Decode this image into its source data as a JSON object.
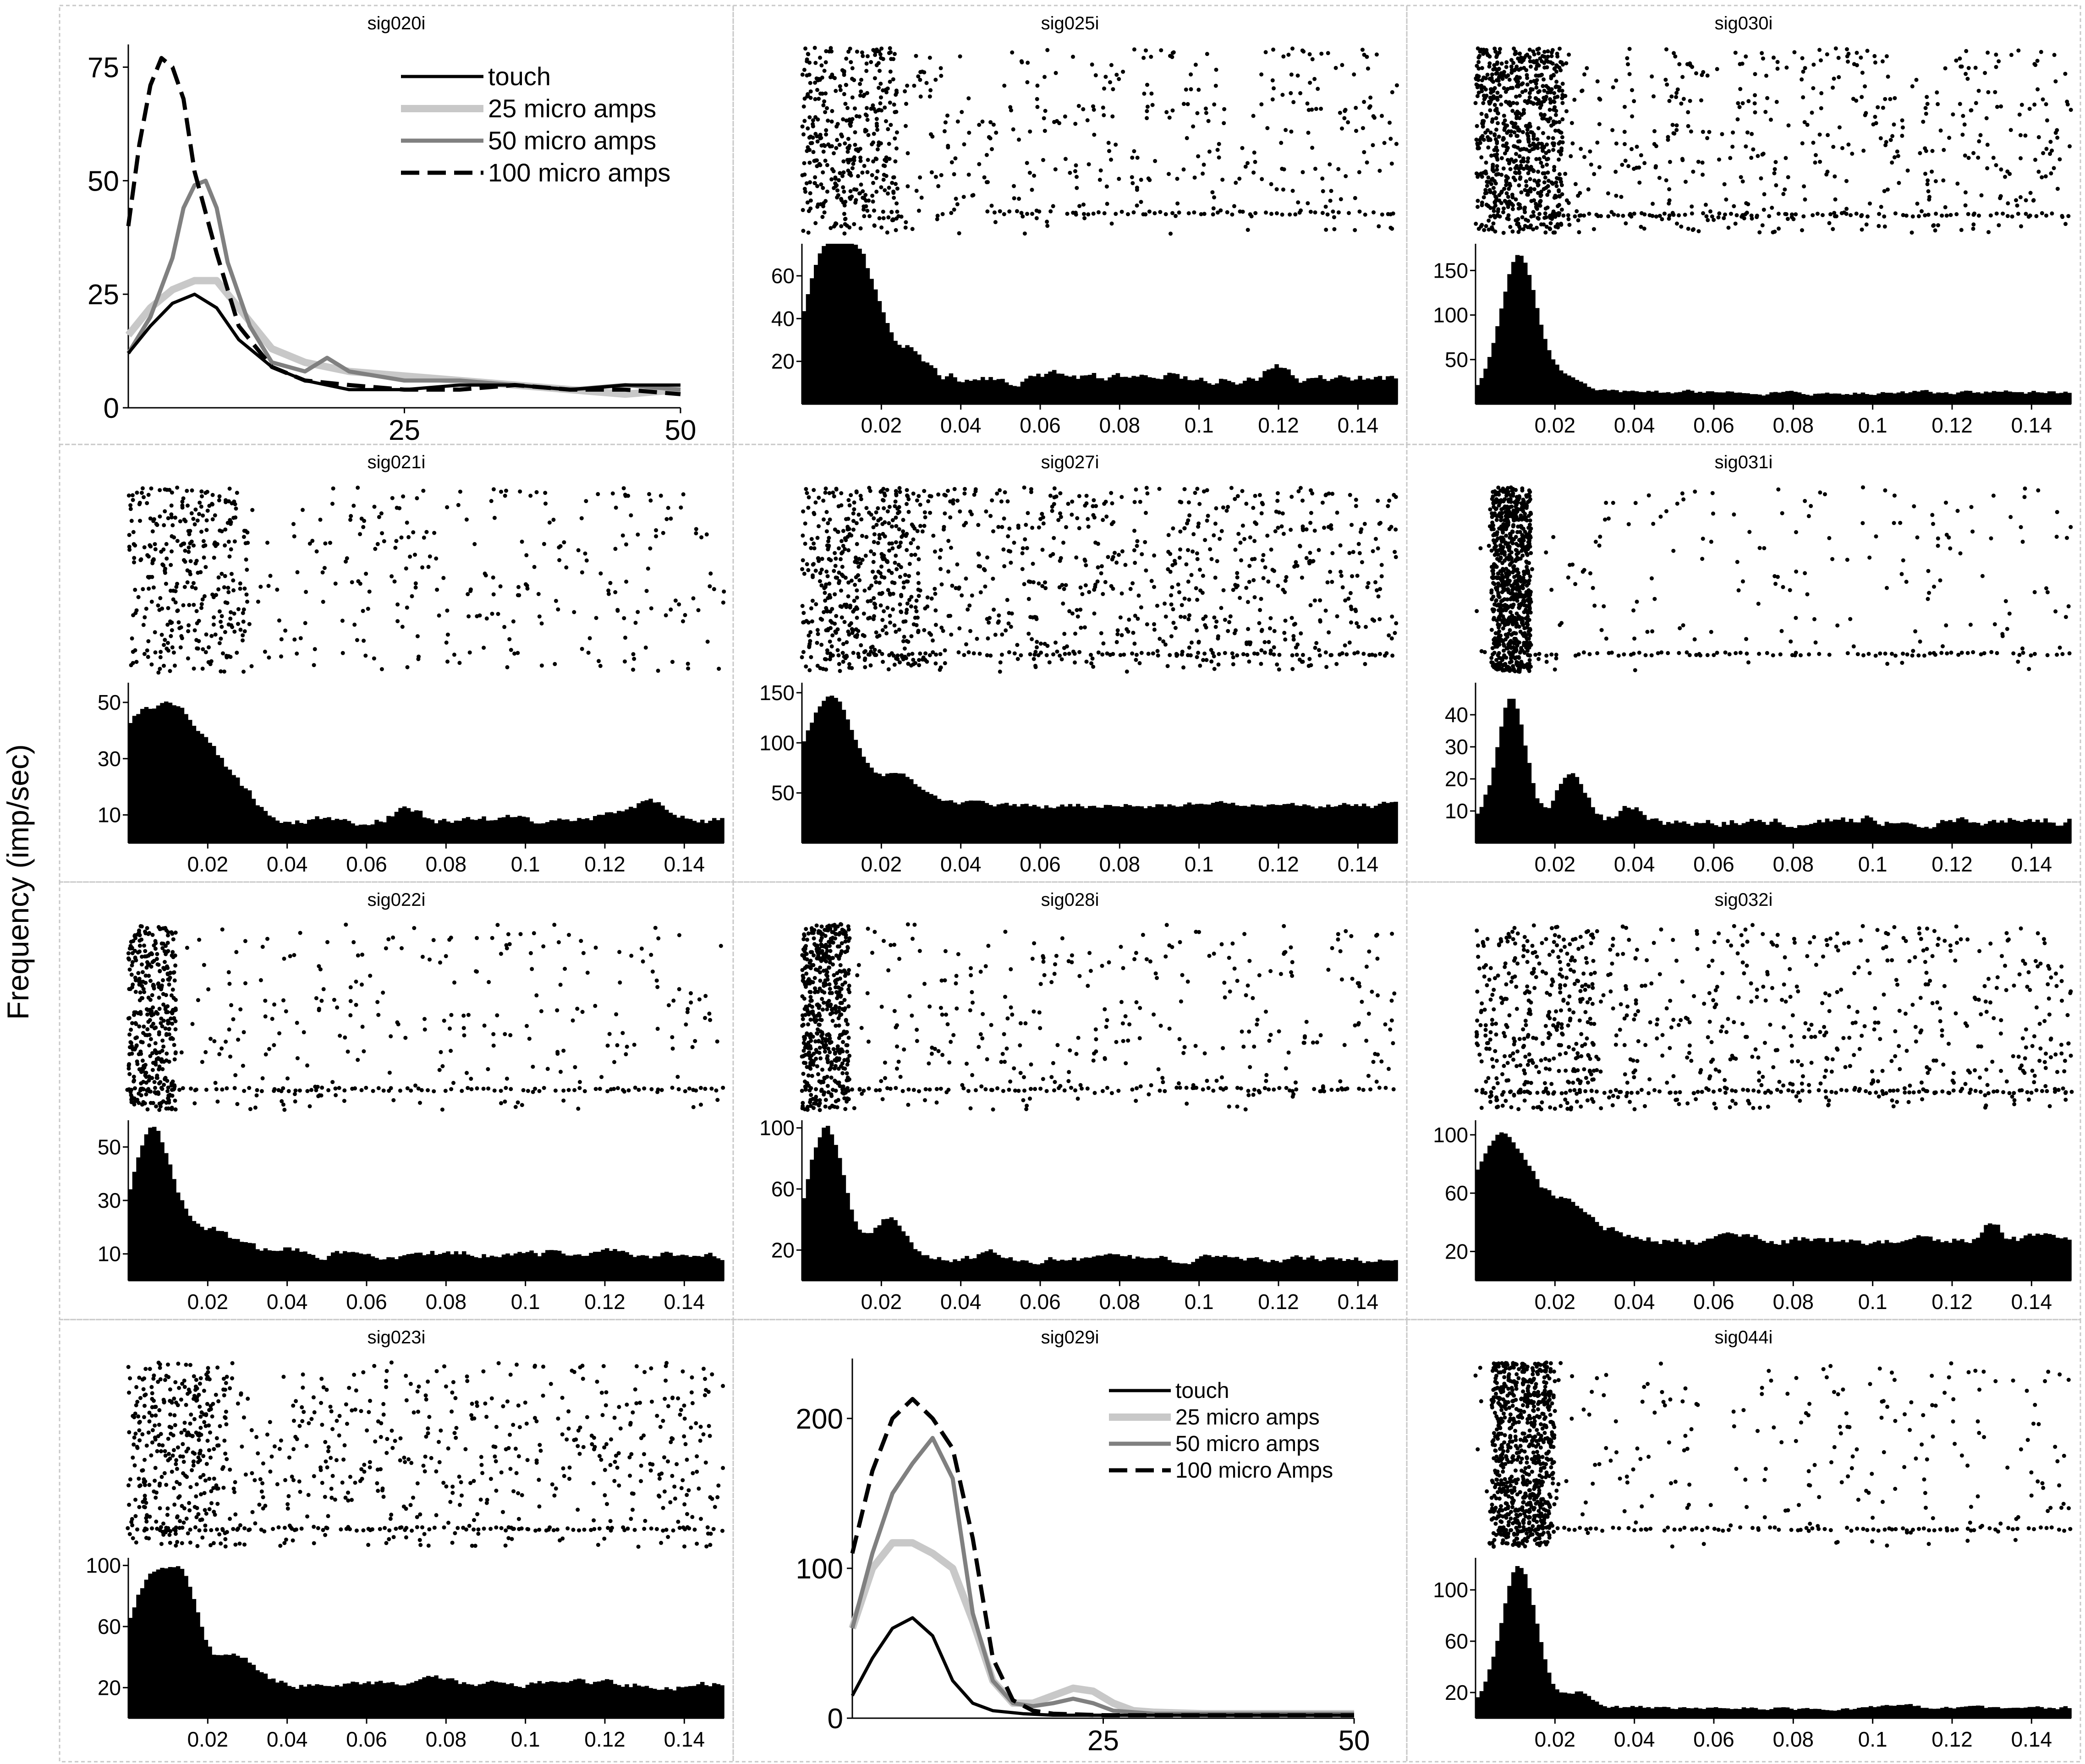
{
  "figure": {
    "ylabel": "Frequency (imp/sec)",
    "colors": {
      "touch": "#000000",
      "ua25": "#c8c8c8",
      "ua50": "#808080",
      "ua100": "#000000",
      "bars": "#000000"
    }
  },
  "chart_data": [
    {
      "id": "sig020i",
      "type": "line",
      "title": "sig020i",
      "xlim": [
        0,
        50
      ],
      "ylim": [
        0,
        80
      ],
      "xticks": [
        "25",
        "50"
      ],
      "yticks": [
        "0",
        "25",
        "50",
        "75"
      ],
      "xtick_values": [
        25,
        50
      ],
      "ytick_values": [
        0,
        25,
        50,
        75
      ],
      "legend_position": "top-right",
      "series": [
        {
          "name": "touch",
          "style": "solid-black",
          "x": [
            0,
            2,
            4,
            6,
            8,
            10,
            13,
            16,
            20,
            25,
            30,
            35,
            40,
            45,
            50
          ],
          "y": [
            12,
            18,
            23,
            25,
            22,
            15,
            9,
            6,
            4,
            4,
            5,
            5,
            4,
            5,
            5
          ]
        },
        {
          "name": "25 micro amps",
          "style": "solid-lightgray",
          "x": [
            0,
            2,
            4,
            6,
            8,
            10,
            13,
            16,
            20,
            25,
            30,
            35,
            40,
            45,
            50
          ],
          "y": [
            16,
            22,
            26,
            28,
            28,
            22,
            13,
            10,
            8,
            7,
            6,
            5,
            4,
            3,
            4
          ]
        },
        {
          "name": "50 micro amps",
          "style": "solid-gray",
          "x": [
            0,
            2,
            4,
            5,
            6,
            7,
            8,
            9,
            11,
            13,
            16,
            18,
            20,
            25,
            30,
            35,
            40,
            45,
            50
          ],
          "y": [
            12,
            20,
            33,
            44,
            49,
            50,
            44,
            32,
            18,
            10,
            8,
            11,
            8,
            6,
            6,
            5,
            4,
            5,
            4
          ]
        },
        {
          "name": "100 micro amps",
          "style": "dashed-black",
          "x": [
            0,
            1,
            2,
            3,
            4,
            5,
            6,
            7,
            8,
            10,
            13,
            16,
            20,
            25,
            30,
            35,
            40,
            45,
            50
          ],
          "y": [
            40,
            58,
            71,
            77,
            75,
            68,
            52,
            43,
            34,
            18,
            9,
            6,
            5,
            4,
            4,
            5,
            4,
            4,
            3
          ]
        }
      ]
    },
    {
      "id": "sig025i",
      "type": "raster+histogram",
      "title": "sig025i",
      "xlim": [
        0,
        0.15
      ],
      "ylim": [
        0,
        75
      ],
      "xticks": [
        "0.02",
        "0.04",
        "0.06",
        "0.08",
        "0.1",
        "0.12",
        "0.14"
      ],
      "yticks": [
        "20",
        "40",
        "60"
      ],
      "xtick_values": [
        0.02,
        0.04,
        0.06,
        0.08,
        0.1,
        0.12,
        0.14
      ],
      "ytick_values": [
        20,
        40,
        60
      ],
      "raster": {
        "rows": 14,
        "density": 0.5,
        "early": [
          0,
          0.024,
          3
        ],
        "band": [
          0.047,
          0.15,
          1
        ]
      },
      "hist": {
        "base": 12,
        "peaks": [
          [
            0.006,
            55,
            0.005
          ],
          [
            0.015,
            48,
            0.005
          ],
          [
            0.027,
            12,
            0.004
          ],
          [
            0.12,
            6,
            0.003
          ]
        ],
        "noise": 3
      }
    },
    {
      "id": "sig030i",
      "type": "raster+histogram",
      "title": "sig030i",
      "xlim": [
        0,
        0.15
      ],
      "ylim": [
        0,
        180
      ],
      "xticks": [
        "0.02",
        "0.04",
        "0.06",
        "0.08",
        "0.1",
        "0.12",
        "0.14"
      ],
      "yticks": [
        "50",
        "100",
        "150"
      ],
      "xtick_values": [
        0.02,
        0.04,
        0.06,
        0.08,
        0.1,
        0.12,
        0.14
      ],
      "ytick_values": [
        50,
        100,
        150
      ],
      "raster": {
        "rows": 16,
        "density": 0.55,
        "early": [
          0,
          0.022,
          5
        ],
        "band": [
          0.015,
          0.15,
          1
        ]
      },
      "hist": {
        "base": 13,
        "peaks": [
          [
            0.011,
            155,
            0.0045
          ],
          [
            0.022,
            15,
            0.004
          ]
        ],
        "noise": 3
      }
    },
    {
      "id": "sig021i",
      "type": "raster+histogram",
      "title": "sig021i",
      "xlim": [
        0,
        0.15
      ],
      "ylim": [
        0,
        57
      ],
      "xticks": [
        "0.02",
        "0.04",
        "0.06",
        "0.08",
        "0.1",
        "0.12",
        "0.14"
      ],
      "yticks": [
        "10",
        "30",
        "50"
      ],
      "xtick_values": [
        0.02,
        0.04,
        0.06,
        0.08,
        0.1,
        0.12,
        0.14
      ],
      "ytick_values": [
        10,
        30,
        50
      ],
      "raster": {
        "rows": 14,
        "density": 0.4,
        "early": [
          0,
          0.03,
          2.5
        ],
        "band": null
      },
      "hist": {
        "base": 8,
        "peaks": [
          [
            0.006,
            38,
            0.012
          ],
          [
            0.02,
            10,
            0.008
          ],
          [
            0.07,
            5,
            0.003
          ],
          [
            0.13,
            6,
            0.006
          ]
        ],
        "noise": 2
      }
    },
    {
      "id": "sig027i",
      "type": "raster+histogram",
      "title": "sig027i",
      "xlim": [
        0,
        0.15
      ],
      "ylim": [
        0,
        160
      ],
      "xticks": [
        "0.02",
        "0.04",
        "0.06",
        "0.08",
        "0.1",
        "0.12",
        "0.14"
      ],
      "yticks": [
        "50",
        "100",
        "150"
      ],
      "xtick_values": [
        0.02,
        0.04,
        0.06,
        0.08,
        0.1,
        0.12,
        0.14
      ],
      "ytick_values": [
        50,
        100,
        150
      ],
      "raster": {
        "rows": 16,
        "density": 0.9,
        "early": [
          0,
          0.03,
          2.5
        ],
        "band": [
          0.01,
          0.15,
          1
        ]
      },
      "hist": {
        "base": 38,
        "peaks": [
          [
            0.007,
            110,
            0.006
          ],
          [
            0.024,
            28,
            0.005
          ]
        ],
        "noise": 4
      }
    },
    {
      "id": "sig031i",
      "type": "raster+histogram",
      "title": "sig031i",
      "xlim": [
        0,
        0.15
      ],
      "ylim": [
        0,
        50
      ],
      "xticks": [
        "0.02",
        "0.04",
        "0.06",
        "0.08",
        "0.1",
        "0.12",
        "0.14"
      ],
      "yticks": [
        "10",
        "20",
        "30",
        "40"
      ],
      "xtick_values": [
        0.02,
        0.04,
        0.06,
        0.08,
        0.1,
        0.12,
        0.14
      ],
      "ytick_values": [
        10,
        20,
        30,
        40
      ],
      "raster": {
        "rows": 16,
        "density": 0.18,
        "early": [
          0.004,
          0.014,
          6
        ],
        "band": [
          0.015,
          0.15,
          1
        ]
      },
      "hist": {
        "base": 7,
        "peaks": [
          [
            0.009,
            38,
            0.0035
          ],
          [
            0.024,
            13,
            0.004
          ],
          [
            0.04,
            4,
            0.003
          ]
        ],
        "noise": 2
      }
    },
    {
      "id": "sig022i",
      "type": "raster+histogram",
      "title": "sig022i",
      "xlim": [
        0,
        0.15
      ],
      "ylim": [
        0,
        60
      ],
      "xticks": [
        "0.02",
        "0.04",
        "0.06",
        "0.08",
        "0.1",
        "0.12",
        "0.14"
      ],
      "yticks": [
        "10",
        "30",
        "50"
      ],
      "xtick_values": [
        0.02,
        0.04,
        0.06,
        0.08,
        0.1,
        0.12,
        0.14
      ],
      "ytick_values": [
        10,
        30,
        50
      ],
      "raster": {
        "rows": 14,
        "density": 0.35,
        "early": [
          0,
          0.012,
          3
        ],
        "band": [
          0,
          0.15,
          1
        ]
      },
      "hist": {
        "base": 10,
        "peaks": [
          [
            0.006,
            45,
            0.005
          ],
          [
            0.02,
            10,
            0.006
          ],
          [
            0.04,
            3,
            0.003
          ]
        ],
        "noise": 2
      }
    },
    {
      "id": "sig028i",
      "type": "raster+histogram",
      "title": "sig028i",
      "xlim": [
        0,
        0.15
      ],
      "ylim": [
        0,
        105
      ],
      "xticks": [
        "0.02",
        "0.04",
        "0.06",
        "0.08",
        "0.1",
        "0.12",
        "0.14"
      ],
      "yticks": [
        "20",
        "60",
        "100"
      ],
      "xtick_values": [
        0.02,
        0.04,
        0.06,
        0.08,
        0.1,
        0.12,
        0.14
      ],
      "ytick_values": [
        20,
        60,
        100
      ],
      "raster": {
        "rows": 14,
        "density": 0.45,
        "early": [
          0,
          0.012,
          4
        ],
        "band": [
          0.01,
          0.15,
          1
        ]
      },
      "hist": {
        "base": 14,
        "peaks": [
          [
            0.006,
            86,
            0.0045
          ],
          [
            0.022,
            28,
            0.004
          ],
          [
            0.047,
            6,
            0.002
          ]
        ],
        "noise": 3
      }
    },
    {
      "id": "sig032i",
      "type": "raster+histogram",
      "title": "sig032i",
      "xlim": [
        0,
        0.15
      ],
      "ylim": [
        0,
        110
      ],
      "xticks": [
        "0.02",
        "0.04",
        "0.06",
        "0.08",
        "0.1",
        "0.12",
        "0.14"
      ],
      "yticks": [
        "20",
        "60",
        "100"
      ],
      "xtick_values": [
        0.02,
        0.04,
        0.06,
        0.08,
        0.1,
        0.12,
        0.14
      ],
      "ytick_values": [
        20,
        60,
        100
      ],
      "raster": {
        "rows": 16,
        "density": 0.65,
        "early": [
          0,
          0.03,
          2
        ],
        "band": [
          0,
          0.15,
          1
        ]
      },
      "hist": {
        "base": 28,
        "peaks": [
          [
            0.006,
            72,
            0.006
          ],
          [
            0.022,
            25,
            0.008
          ],
          [
            0.13,
            12,
            0.002
          ]
        ],
        "noise": 4
      }
    },
    {
      "id": "sig023i",
      "type": "raster+histogram",
      "title": "sig023i",
      "xlim": [
        0,
        0.15
      ],
      "ylim": [
        0,
        105
      ],
      "xticks": [
        "0.02",
        "0.04",
        "0.06",
        "0.08",
        "0.1",
        "0.12",
        "0.14"
      ],
      "yticks": [
        "20",
        "60",
        "100"
      ],
      "xtick_values": [
        0.02,
        0.04,
        0.06,
        0.08,
        0.1,
        0.12,
        0.14
      ],
      "ytick_values": [
        20,
        60,
        100
      ],
      "raster": {
        "rows": 16,
        "density": 0.55,
        "early": [
          0,
          0.025,
          2
        ],
        "band": [
          0,
          0.15,
          1
        ]
      },
      "hist": {
        "base": 22,
        "peaks": [
          [
            0.005,
            65,
            0.005
          ],
          [
            0.014,
            60,
            0.004
          ],
          [
            0.027,
            18,
            0.005
          ],
          [
            0.077,
            6,
            0.004
          ]
        ],
        "noise": 3
      }
    },
    {
      "id": "sig029i",
      "type": "line",
      "title": "sig029i",
      "xlim": [
        0,
        50
      ],
      "ylim": [
        0,
        240
      ],
      "xticks": [
        "25",
        "50"
      ],
      "yticks": [
        "0",
        "100",
        "200"
      ],
      "xtick_values": [
        25,
        50
      ],
      "ytick_values": [
        0,
        100,
        200
      ],
      "legend_position": "top-right",
      "series": [
        {
          "name": "touch",
          "style": "solid-black",
          "x": [
            0,
            2,
            4,
            6,
            8,
            10,
            12,
            14,
            17,
            20,
            25,
            30,
            35,
            40,
            45,
            50
          ],
          "y": [
            15,
            40,
            60,
            67,
            55,
            25,
            10,
            5,
            3,
            2,
            2,
            2,
            2,
            2,
            2,
            2
          ]
        },
        {
          "name": "25 micro amps",
          "style": "solid-lightgray",
          "x": [
            0,
            2,
            4,
            6,
            8,
            10,
            12,
            14,
            16,
            18,
            20,
            22,
            24,
            26,
            28,
            30,
            35,
            40,
            45,
            50
          ],
          "y": [
            60,
            100,
            117,
            117,
            110,
            100,
            65,
            25,
            10,
            10,
            15,
            20,
            18,
            10,
            5,
            4,
            3,
            3,
            3,
            3
          ]
        },
        {
          "name": "50 micro amps",
          "style": "solid-gray",
          "x": [
            0,
            2,
            4,
            6,
            8,
            10,
            12,
            14,
            16,
            18,
            20,
            22,
            24,
            26,
            28,
            30,
            35,
            40,
            45,
            50
          ],
          "y": [
            60,
            110,
            150,
            170,
            187,
            160,
            70,
            25,
            10,
            8,
            10,
            13,
            10,
            5,
            4,
            3,
            3,
            3,
            3,
            3
          ]
        },
        {
          "name": "100 micro Amps",
          "style": "dashed-black",
          "x": [
            0,
            2,
            4,
            6,
            8,
            10,
            12,
            14,
            16,
            18,
            20,
            25,
            30,
            35,
            40,
            45,
            50
          ],
          "y": [
            110,
            165,
            200,
            213,
            200,
            180,
            120,
            40,
            12,
            5,
            3,
            2,
            2,
            2,
            2,
            2,
            2
          ]
        }
      ]
    },
    {
      "id": "sig044i",
      "type": "raster+histogram",
      "title": "sig044i",
      "xlim": [
        0,
        0.15
      ],
      "ylim": [
        0,
        125
      ],
      "xticks": [
        "0.02",
        "0.04",
        "0.06",
        "0.08",
        "0.1",
        "0.12",
        "0.14"
      ],
      "yticks": [
        "20",
        "60",
        "100"
      ],
      "xtick_values": [
        0.02,
        0.04,
        0.06,
        0.08,
        0.1,
        0.12,
        0.14
      ],
      "ytick_values": [
        20,
        60,
        100
      ],
      "raster": {
        "rows": 16,
        "density": 0.25,
        "early": [
          0.004,
          0.02,
          6
        ],
        "band": [
          0.015,
          0.15,
          1
        ]
      },
      "hist": {
        "base": 8,
        "peaks": [
          [
            0.011,
            110,
            0.0045
          ],
          [
            0.026,
            12,
            0.003
          ]
        ],
        "noise": 2
      }
    }
  ]
}
